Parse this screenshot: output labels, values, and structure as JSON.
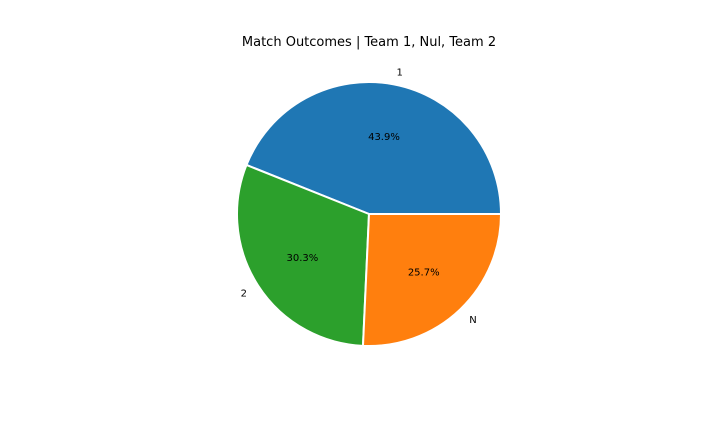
{
  "chart_data": {
    "type": "pie",
    "title": "Match Outcomes | Team 1, Nul, Team 2",
    "slices": [
      {
        "label": "1",
        "value": 43.9,
        "pct_label": "43.9%",
        "color": "#1f77b4"
      },
      {
        "label": "2",
        "value": 30.3,
        "pct_label": "30.3%",
        "color": "#2ca02c"
      },
      {
        "label": "N",
        "value": 25.7,
        "pct_label": "25.7%",
        "color": "#ff7f0e"
      }
    ],
    "start_angle_deg": 0,
    "direction": "counterclockwise",
    "edge_color": "#ffffff"
  }
}
